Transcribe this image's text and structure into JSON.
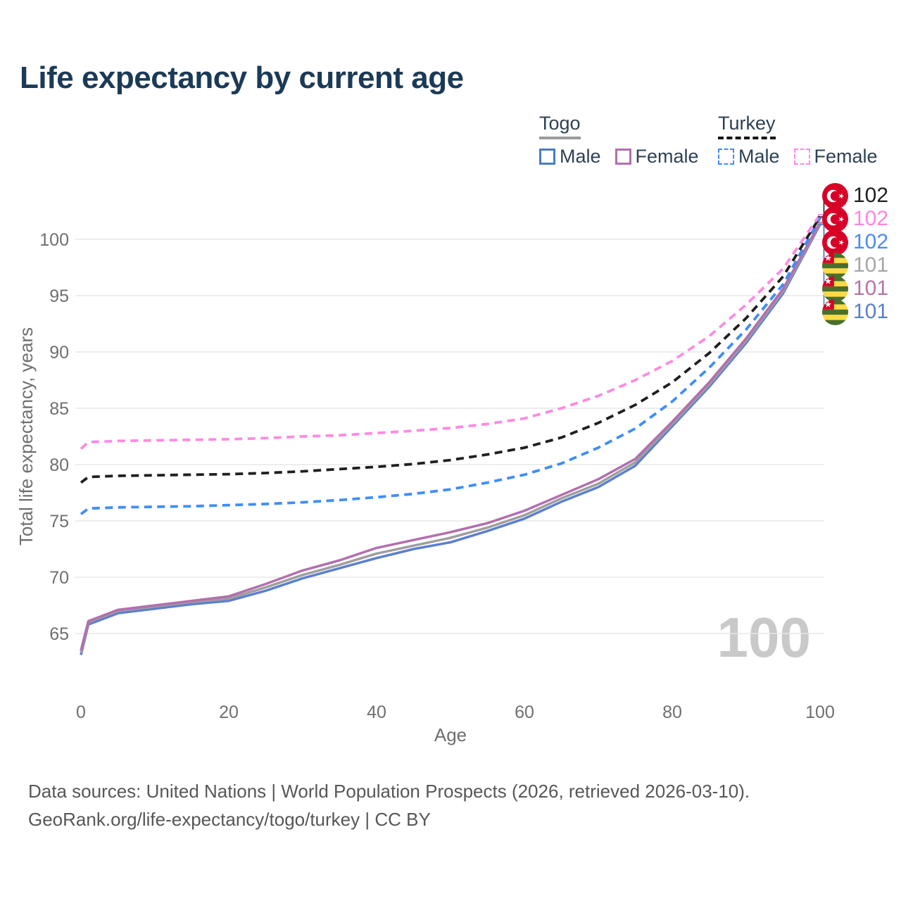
{
  "title": "Life expectancy by current age",
  "watermark": "100",
  "legend": {
    "groups": [
      {
        "country": "Togo",
        "line_style": "solid",
        "underline_color": "#9c9c9c",
        "items": [
          {
            "label": "Male",
            "color": "#4a7dbd"
          },
          {
            "label": "Female",
            "color": "#b26fae"
          }
        ]
      },
      {
        "country": "Turkey",
        "line_style": "dashed",
        "underline_color": "#161616",
        "items": [
          {
            "label": "Male",
            "color": "#3e8ef7"
          },
          {
            "label": "Female",
            "color": "#ff8ae2"
          }
        ]
      }
    ]
  },
  "end_labels": [
    {
      "flag": "turkey",
      "value": "102",
      "color": "#1f1f1f",
      "series": "Turkey Both sexes"
    },
    {
      "flag": "turkey",
      "value": "102",
      "color": "#ff85dd",
      "series": "Turkey Female"
    },
    {
      "flag": "turkey",
      "value": "102",
      "color": "#4b8bf5",
      "series": "Turkey Male"
    },
    {
      "flag": "togo",
      "value": "101",
      "color": "#a6a6a6",
      "series": "Togo Both sexes"
    },
    {
      "flag": "togo",
      "value": "101",
      "color": "#b573ab",
      "series": "Togo Female"
    },
    {
      "flag": "togo",
      "value": "101",
      "color": "#5b7fc8",
      "series": "Togo Male"
    }
  ],
  "footer": {
    "line1": "Data sources: United Nations | World Population Prospects (2026, retrieved 2026-03-10).",
    "line2": "GeoRank.org/life-expectancy/togo/turkey | CC BY"
  },
  "chart_data": {
    "type": "line",
    "title": "Life expectancy by current age",
    "xlabel": "Age",
    "ylabel": "Total life expectancy, years",
    "x_ticks": [
      0,
      20,
      40,
      60,
      80,
      100
    ],
    "y_ticks": [
      65,
      70,
      75,
      80,
      85,
      90,
      95,
      100
    ],
    "xlim": [
      0,
      100
    ],
    "ylim": [
      63,
      103
    ],
    "grid": "horizontal",
    "legend_position": "top-right",
    "x": [
      0,
      1,
      5,
      10,
      15,
      20,
      25,
      30,
      35,
      40,
      45,
      50,
      55,
      60,
      65,
      70,
      75,
      80,
      85,
      90,
      95,
      100
    ],
    "series": [
      {
        "name": "Togo Male",
        "country": "Togo",
        "sex": "Male",
        "dash": false,
        "color": "#5b7fd1",
        "values": [
          63.1,
          65.8,
          66.8,
          67.2,
          67.6,
          67.9,
          68.8,
          69.9,
          70.8,
          71.7,
          72.5,
          73.1,
          74.1,
          75.2,
          76.7,
          78.0,
          79.9,
          83.4,
          86.9,
          90.8,
          95.2,
          101.3
        ]
      },
      {
        "name": "Togo Both sexes",
        "country": "Togo",
        "sex": "Both sexes",
        "dash": false,
        "color": "#9e9e9e",
        "values": [
          63.3,
          66.0,
          67.0,
          67.4,
          67.8,
          68.1,
          69.1,
          70.2,
          71.1,
          72.1,
          72.8,
          73.5,
          74.4,
          75.5,
          77.0,
          78.3,
          80.2,
          83.6,
          87.1,
          91.0,
          95.4,
          101.4
        ]
      },
      {
        "name": "Togo Female",
        "country": "Togo",
        "sex": "Female",
        "dash": false,
        "color": "#b26fae",
        "values": [
          63.5,
          66.1,
          67.1,
          67.5,
          67.9,
          68.3,
          69.4,
          70.6,
          71.5,
          72.6,
          73.3,
          74.0,
          74.8,
          75.9,
          77.3,
          78.7,
          80.5,
          83.8,
          87.3,
          91.2,
          95.6,
          101.5
        ]
      },
      {
        "name": "Turkey Male",
        "country": "Turkey",
        "sex": "Male",
        "dash": true,
        "color": "#3e8ef7",
        "values": [
          75.6,
          76.1,
          76.2,
          76.25,
          76.3,
          76.4,
          76.5,
          76.65,
          76.85,
          77.1,
          77.4,
          77.8,
          78.4,
          79.1,
          80.1,
          81.5,
          83.2,
          85.6,
          88.6,
          92.0,
          96.0,
          101.9
        ]
      },
      {
        "name": "Turkey Both sexes",
        "country": "Turkey",
        "sex": "Both sexes",
        "dash": true,
        "color": "#1f1f1f",
        "values": [
          78.4,
          78.9,
          79.0,
          79.05,
          79.1,
          79.15,
          79.25,
          79.4,
          79.6,
          79.8,
          80.05,
          80.4,
          80.9,
          81.5,
          82.4,
          83.7,
          85.3,
          87.3,
          89.9,
          93.0,
          96.7,
          102.0
        ]
      },
      {
        "name": "Turkey Female",
        "country": "Turkey",
        "sex": "Female",
        "dash": true,
        "color": "#ff8ae2",
        "values": [
          81.4,
          82.0,
          82.1,
          82.15,
          82.2,
          82.25,
          82.35,
          82.5,
          82.6,
          82.8,
          83.0,
          83.25,
          83.6,
          84.1,
          85.0,
          86.1,
          87.5,
          89.2,
          91.4,
          94.2,
          97.4,
          102.2
        ]
      }
    ]
  }
}
